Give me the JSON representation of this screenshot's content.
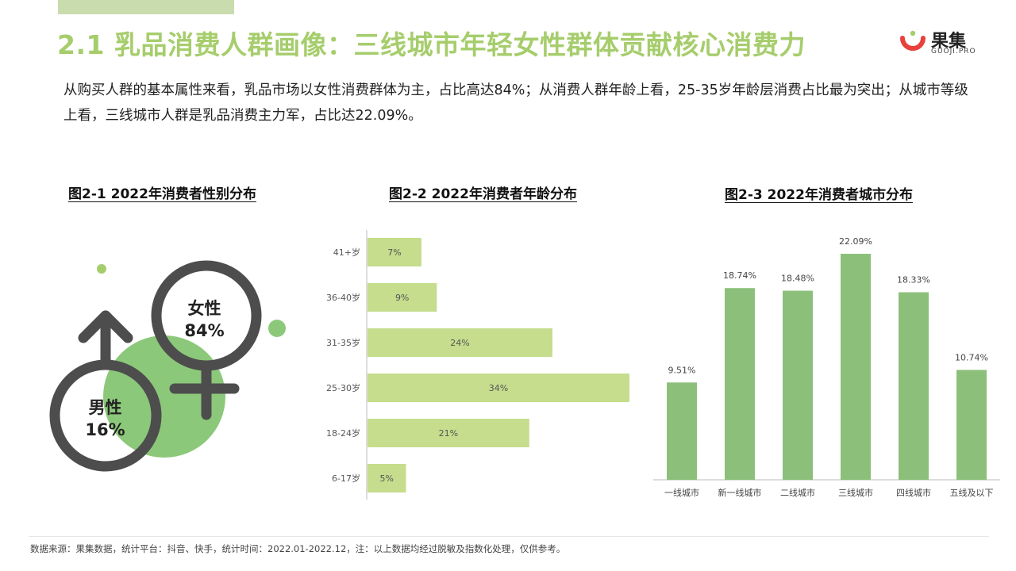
{
  "header": {
    "title": "2.1 乳品消费人群画像：三线城市年轻女性群体贡献核心消费力",
    "logo_text": "果集",
    "logo_sub": "GUOJI.PRO"
  },
  "description": "从购买人群的基本属性来看，乳品市场以女性消费群体为主，占比高达84%；从消费人群年龄上看，25-35岁年龄层消费占比最为突出；从城市等级上看，三线城市人群是乳品消费主力军，占比达22.09%。",
  "colors": {
    "accent": "#a6cd6c",
    "bar_light": "#c5dd8c",
    "bar_green": "#8cc07a",
    "symbol_gray": "#4d4d4d",
    "circle_green": "#8cc87a"
  },
  "footer": "数据来源：果集数据，统计平台：抖音、快手，统计时间：2022.01-2022.12，注：以上数据均经过脱敏及指数化处理，仅供参考。",
  "chart_data": [
    {
      "type": "pie",
      "title": "图2-1 2022年消费者性别分布",
      "categories": [
        "女性",
        "男性"
      ],
      "values": [
        84,
        16
      ],
      "labels": [
        "84%",
        "16%"
      ]
    },
    {
      "type": "bar",
      "orientation": "horizontal",
      "title": "图2-2 2022年消费者年龄分布",
      "categories": [
        "41+岁",
        "36-40岁",
        "31-35岁",
        "25-30岁",
        "18-24岁",
        "6-17岁"
      ],
      "values": [
        7,
        9,
        24,
        34,
        21,
        5
      ],
      "labels": [
        "7%",
        "9%",
        "24%",
        "34%",
        "21%",
        "5%"
      ]
    },
    {
      "type": "bar",
      "title": "图2-3 2022年消费者城市分布",
      "categories": [
        "一线城市",
        "新一线城市",
        "二线城市",
        "三线城市",
        "四线城市",
        "五线及以下"
      ],
      "values": [
        9.51,
        18.74,
        18.48,
        22.09,
        18.33,
        10.74
      ],
      "labels": [
        "9.51%",
        "18.74%",
        "18.48%",
        "22.09%",
        "18.33%",
        "10.74%"
      ]
    }
  ]
}
